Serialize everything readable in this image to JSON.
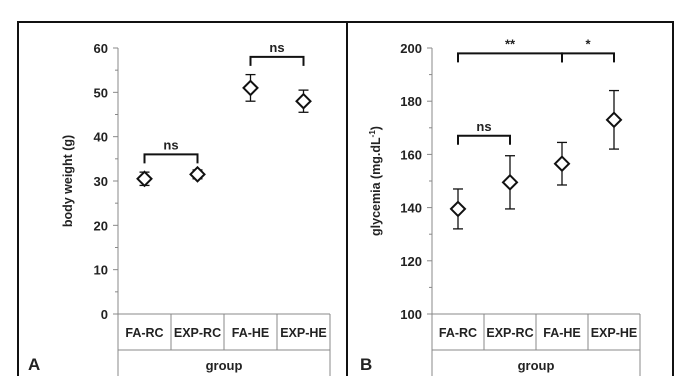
{
  "chart_data": [
    {
      "type": "scatter",
      "panel_letter": "A",
      "ylabel": "body weight (g)",
      "xlabel": "group",
      "ylim": [
        0,
        60
      ],
      "yticks": [
        0,
        10,
        20,
        30,
        40,
        50,
        60
      ],
      "categories": [
        "FA-RC",
        "EXP-RC",
        "FA-HE",
        "EXP-HE"
      ],
      "series": [
        {
          "values": [
            30.5,
            31.5,
            51,
            48
          ],
          "error": [
            1.5,
            1,
            3,
            2.5
          ]
        }
      ],
      "annotations": [
        {
          "text": "ns",
          "from": "FA-RC",
          "to": "EXP-RC",
          "y": 36
        },
        {
          "text": "ns",
          "from": "FA-HE",
          "to": "EXP-HE",
          "y": 58
        }
      ]
    },
    {
      "type": "scatter",
      "panel_letter": "B",
      "ylabel": "glycemia (mg.dL",
      "ylabel_sup": "-1",
      "ylabel_close": ")",
      "xlabel": "group",
      "ylim": [
        100,
        200
      ],
      "yticks": [
        100,
        120,
        140,
        160,
        180,
        200
      ],
      "categories": [
        "FA-RC",
        "EXP-RC",
        "FA-HE",
        "EXP-HE"
      ],
      "series": [
        {
          "values": [
            139.5,
            149.5,
            156.5,
            173
          ],
          "error": [
            7.5,
            10,
            8,
            11
          ]
        }
      ],
      "annotations": [
        {
          "text": "ns",
          "from": "FA-RC",
          "to": "EXP-RC",
          "y": 167
        },
        {
          "text": "**",
          "from": "FA-RC",
          "to": "FA-HE",
          "y": 198
        },
        {
          "text": "*",
          "from": "FA-HE",
          "to": "EXP-HE",
          "y": 198
        }
      ]
    }
  ]
}
